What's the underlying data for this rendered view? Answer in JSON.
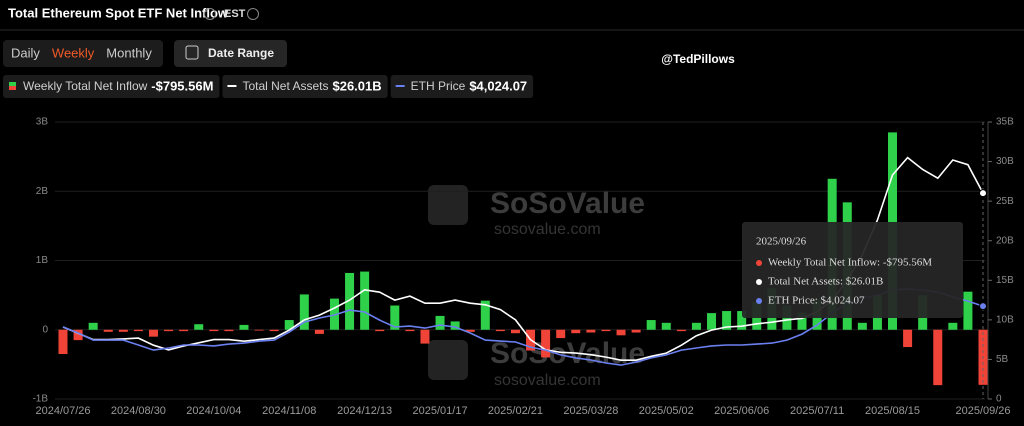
{
  "header": {
    "title": "Total Ethereum Spot ETF Net Inflow",
    "timezone": "EST"
  },
  "tabs": [
    "Daily",
    "Weekly",
    "Monthly"
  ],
  "active_tab": 1,
  "date_range": "Date Range",
  "watermark": {
    "name": "SoSoValue",
    "url": "sosovalue.com"
  },
  "credit": "@TedPillows",
  "tooltip": {
    "date": "2025/09/26",
    "rows": [
      "Weekly Total Net Inflow: -$795.56M",
      "Total Net Assets: $26.01B",
      "ETH Price: $4,024.07"
    ]
  },
  "chart_data": {
    "type": "bar",
    "categories": [
      "2024/07/26",
      null,
      null,
      null,
      null,
      "2024/08/30",
      null,
      null,
      null,
      null,
      "2024/10/04",
      null,
      null,
      null,
      null,
      "2024/11/08",
      null,
      null,
      null,
      null,
      "2024/12/13",
      null,
      null,
      null,
      null,
      "2025/01/17",
      null,
      null,
      null,
      null,
      "2025/02/21",
      null,
      null,
      null,
      null,
      "2025/03/28",
      null,
      null,
      null,
      null,
      "2025/05/02",
      null,
      null,
      null,
      null,
      "2025/06/06",
      null,
      null,
      null,
      null,
      "2025/07/11",
      null,
      null,
      null,
      null,
      "2025/08/15",
      null,
      null,
      null,
      null,
      null,
      "2025/09/26"
    ],
    "ylim": [
      -1,
      3
    ],
    "yticks": [
      {
        "value": 3,
        "label": "3B"
      },
      {
        "value": 2,
        "label": "2B"
      },
      {
        "value": 1,
        "label": "1B"
      },
      0,
      {
        "value": -1,
        "label": "-1B"
      }
    ],
    "y2lim": [
      0,
      35
    ],
    "y2ticks": [
      {
        "value": 35,
        "label": "35B"
      },
      {
        "value": 30,
        "label": "30B"
      },
      {
        "value": 25,
        "label": "25B"
      },
      {
        "value": 20,
        "label": "20B"
      },
      {
        "value": 15,
        "label": "15B"
      },
      {
        "value": 10,
        "label": "10B"
      },
      {
        "value": 5,
        "label": "5B"
      },
      0
    ],
    "y3lim": [
      0,
      12000
    ],
    "grid": true,
    "series": [
      {
        "name": "Weekly Total Net Inflow",
        "legend_value": "-$795.56M",
        "type": "bar",
        "axis": "y",
        "color": "#2fd14b",
        "negative_color": "#f04438",
        "values": [
          -0.35,
          -0.15,
          0.1,
          -0.03,
          -0.03,
          -0.02,
          -0.1,
          -0.02,
          -0.02,
          0.08,
          -0.02,
          -0.02,
          0.07,
          -0.01,
          -0.02,
          0.14,
          0.51,
          -0.06,
          0.45,
          0.82,
          0.84,
          -0.02,
          0.35,
          -0.02,
          -0.2,
          0.2,
          0.12,
          -0.03,
          0.42,
          -0.02,
          -0.05,
          -0.3,
          -0.4,
          -0.12,
          -0.05,
          -0.04,
          -0.02,
          -0.08,
          -0.04,
          0.14,
          0.1,
          -0.02,
          0.1,
          0.24,
          0.27,
          0.27,
          0.4,
          0.6,
          0.35,
          0.25,
          0.45,
          2.18,
          1.84,
          0.1,
          0.5,
          2.85,
          -0.25,
          0.5,
          -0.8,
          0.1,
          0.55,
          -0.79556
        ]
      },
      {
        "name": "Total Net Assets",
        "legend_value": "$26.01B",
        "type": "line",
        "axis": "y2",
        "color": "#ffffff",
        "values": [
          9.1,
          8.3,
          7.5,
          7.5,
          7.6,
          7.7,
          6.8,
          6.2,
          6.7,
          7.1,
          7.5,
          7.5,
          7.3,
          7.5,
          7.7,
          8.7,
          10.0,
          10.6,
          11.5,
          12.5,
          13.8,
          13.5,
          12.5,
          13.0,
          12.1,
          12.1,
          12.5,
          12.1,
          11.9,
          11.3,
          10.0,
          7.5,
          6.2,
          5.9,
          5.8,
          5.6,
          5.3,
          4.9,
          4.9,
          5.4,
          5.8,
          6.8,
          8.0,
          8.7,
          9.1,
          9.2,
          9.5,
          9.7,
          10.0,
          10.2,
          11.0,
          12.5,
          15.0,
          18.2,
          22.6,
          28.3,
          30.5,
          29.0,
          27.9,
          30.2,
          29.6,
          26.01
        ]
      },
      {
        "name": "ETH Price",
        "legend_value": "$4,024.07",
        "type": "line",
        "axis": "y3",
        "color": "#6b80f0",
        "values": [
          3120,
          2860,
          2550,
          2550,
          2550,
          2340,
          2120,
          2210,
          2340,
          2340,
          2300,
          2380,
          2420,
          2510,
          2550,
          2900,
          3330,
          3510,
          3640,
          3850,
          3770,
          3420,
          3120,
          3160,
          3070,
          3200,
          3120,
          2860,
          2550,
          2510,
          2470,
          2250,
          2120,
          1910,
          1780,
          1690,
          1560,
          1470,
          1600,
          1780,
          1910,
          2120,
          2210,
          2300,
          2340,
          2340,
          2380,
          2420,
          2550,
          2810,
          3200,
          3720,
          4150,
          4370,
          4500,
          4720,
          4760,
          4720,
          4630,
          4420,
          4240,
          4024.07
        ]
      }
    ]
  }
}
